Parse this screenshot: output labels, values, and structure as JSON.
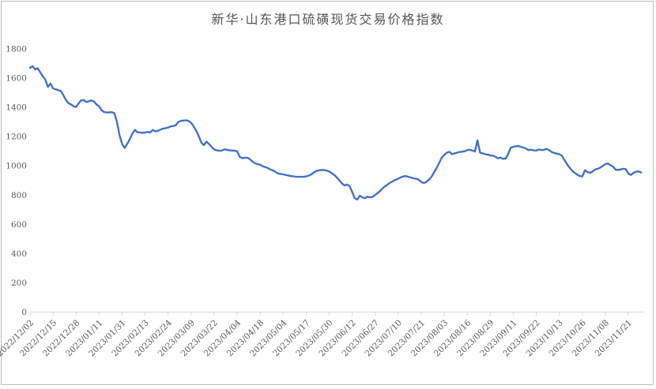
{
  "chart_data": {
    "type": "line",
    "title": "新华·山东港口硫磺现货交易价格指数",
    "xlabel": "",
    "ylabel": "",
    "ylim": [
      0,
      1800
    ],
    "y_ticks": [
      0,
      200,
      400,
      600,
      800,
      1000,
      1200,
      1400,
      1600,
      1800
    ],
    "grid": "off",
    "legend": "none",
    "x_tick_labels": [
      "2022/12/02",
      "2022/12/15",
      "2022/12/28",
      "2023/01/11",
      "2023/01/31",
      "2023/02/13",
      "2023/02/24",
      "2023/03/09",
      "2023/03/22",
      "2023/04/04",
      "2023/04/18",
      "2023/05/04",
      "2023/05/17",
      "2023/05/30",
      "2023/06/12",
      "2023/06/27",
      "2023/07/10",
      "2023/07/21",
      "2023/08/03",
      "2023/08/16",
      "2023/08/29",
      "2023/09/11",
      "2023/09/22",
      "2023/10/13",
      "2023/10/26",
      "2023/11/08",
      "2023/11/21"
    ],
    "points_per_tick": 9,
    "values": [
      1671,
      1682,
      1660,
      1668,
      1640,
      1612,
      1590,
      1540,
      1563,
      1530,
      1524,
      1518,
      1512,
      1485,
      1452,
      1430,
      1420,
      1408,
      1403,
      1428,
      1448,
      1450,
      1437,
      1442,
      1448,
      1440,
      1420,
      1408,
      1380,
      1368,
      1365,
      1366,
      1367,
      1360,
      1300,
      1210,
      1150,
      1122,
      1150,
      1182,
      1220,
      1246,
      1231,
      1228,
      1226,
      1228,
      1232,
      1228,
      1246,
      1236,
      1240,
      1248,
      1255,
      1258,
      1262,
      1270,
      1272,
      1278,
      1300,
      1308,
      1310,
      1312,
      1308,
      1295,
      1270,
      1240,
      1203,
      1160,
      1142,
      1166,
      1150,
      1130,
      1113,
      1106,
      1104,
      1105,
      1113,
      1110,
      1106,
      1105,
      1104,
      1100,
      1062,
      1053,
      1055,
      1056,
      1045,
      1030,
      1018,
      1012,
      1008,
      998,
      992,
      985,
      975,
      970,
      958,
      948,
      945,
      942,
      938,
      935,
      930,
      928,
      926,
      925,
      925,
      926,
      928,
      934,
      942,
      955,
      965,
      970,
      972,
      971,
      968,
      962,
      950,
      938,
      920,
      901,
      880,
      866,
      872,
      860,
      822,
      779,
      770,
      796,
      785,
      779,
      790,
      784,
      788,
      801,
      815,
      830,
      848,
      862,
      875,
      886,
      896,
      905,
      912,
      922,
      928,
      930,
      925,
      920,
      915,
      912,
      905,
      890,
      882,
      890,
      905,
      925,
      955,
      985,
      1020,
      1055,
      1075,
      1090,
      1096,
      1080,
      1085,
      1090,
      1095,
      1097,
      1100,
      1108,
      1110,
      1105,
      1098,
      1175,
      1090,
      1086,
      1080,
      1076,
      1072,
      1070,
      1062,
      1052,
      1056,
      1048,
      1050,
      1080,
      1124,
      1130,
      1134,
      1136,
      1130,
      1125,
      1118,
      1108,
      1110,
      1106,
      1105,
      1112,
      1108,
      1110,
      1116,
      1108,
      1095,
      1088,
      1084,
      1080,
      1070,
      1040,
      1012,
      988,
      968,
      952,
      940,
      930,
      928,
      970,
      958,
      952,
      962,
      975,
      980,
      988,
      1000,
      1012,
      1017,
      1005,
      995,
      975,
      972,
      976,
      980,
      978,
      948,
      938,
      952,
      960,
      962,
      955
    ],
    "line_color": "#4472C4",
    "axis_color": "#D9D9D9",
    "tick_label_color": "#595959",
    "title_color": "#555555",
    "frame_color": "#BDBDBD",
    "background": "#FFFFFF"
  }
}
